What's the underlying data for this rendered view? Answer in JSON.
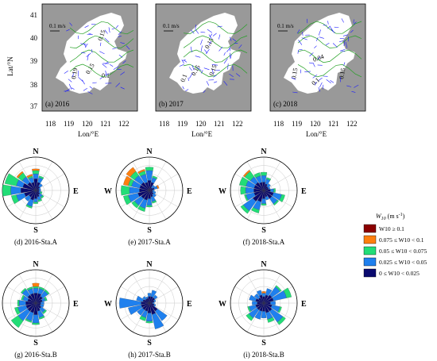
{
  "colors": {
    "land": "#999999",
    "sea": "#ffffff",
    "vector_blue": "#1a1aff",
    "contour_green": "#22a022",
    "bin_colors": [
      "#0a0a6e",
      "#1f80ee",
      "#22dd77",
      "#ff7f0e",
      "#8b0000"
    ]
  },
  "maps": [
    {
      "label": "(a) 2016",
      "scale_label": "0.1 m/s",
      "contour_labels": [
        "0.15",
        "0.19",
        "0.15",
        "0.1"
      ]
    },
    {
      "label": "(b) 2017",
      "scale_label": "0.1 m/s",
      "contour_labels": [
        "0.15",
        "0.15",
        "0.1",
        "0.15"
      ]
    },
    {
      "label": "(c) 2018",
      "scale_label": "0.1 m/s",
      "contour_labels": [
        "0.15",
        "0.04",
        "0.1",
        "0.15"
      ]
    }
  ],
  "map_axes": {
    "ylabel": "Lat/°N",
    "xlabel": "Lon/°E",
    "yticks": [
      "37",
      "38",
      "39",
      "40",
      "41"
    ],
    "xticks": [
      "118",
      "119",
      "120",
      "121",
      "122"
    ]
  },
  "legend": {
    "title": "W10 (m s-1)",
    "items": [
      "W10 ≥ 0.1",
      "0.075 ≤ W10 < 0.1",
      "0.05 ≤ W10 < 0.075",
      "0.025 ≤ W10 < 0.05",
      "0 ≤ W10 < 0.025"
    ]
  },
  "chart_data": [
    {
      "type": "rose",
      "label": "(d) 2016-Sta.A",
      "directions": [
        "N",
        "E",
        "S",
        "W"
      ],
      "r_max": 1,
      "sectors": [
        [
          0,
          0.35,
          0.15,
          0.1,
          0.05,
          0
        ],
        [
          22.5,
          0.25,
          0.15,
          0.05,
          0,
          0
        ],
        [
          45,
          0.15,
          0.1,
          0,
          0,
          0
        ],
        [
          67.5,
          0.1,
          0.05,
          0,
          0,
          0
        ],
        [
          90,
          0.1,
          0.05,
          0,
          0,
          0
        ],
        [
          112.5,
          0.1,
          0.05,
          0.05,
          0,
          0
        ],
        [
          135,
          0.15,
          0.1,
          0.05,
          0,
          0
        ],
        [
          157.5,
          0.2,
          0.1,
          0.05,
          0,
          0
        ],
        [
          180,
          0.25,
          0.1,
          0.05,
          0,
          0
        ],
        [
          202.5,
          0.3,
          0.2,
          0.05,
          0,
          0
        ],
        [
          225,
          0.25,
          0.15,
          0,
          0,
          0
        ],
        [
          247.5,
          0.35,
          0.25,
          0.15,
          0,
          0
        ],
        [
          270,
          0.45,
          0.3,
          0.25,
          0,
          0
        ],
        [
          292.5,
          0.4,
          0.2,
          0.35,
          0,
          0
        ],
        [
          315,
          0.3,
          0.2,
          0.15,
          0.05,
          0
        ],
        [
          337.5,
          0.25,
          0.15,
          0.05,
          0.05,
          0
        ]
      ]
    },
    {
      "type": "rose",
      "label": "(e) 2017-Sta.A",
      "directions": [
        "N",
        "E",
        "S",
        "W"
      ],
      "r_max": 1,
      "sectors": [
        [
          0,
          0.3,
          0.3,
          0.1,
          0,
          0
        ],
        [
          22.5,
          0.25,
          0.15,
          0.05,
          0,
          0
        ],
        [
          45,
          0.1,
          0.1,
          0,
          0,
          0
        ],
        [
          67.5,
          0.15,
          0.1,
          0,
          0.05,
          0
        ],
        [
          90,
          0.1,
          0.05,
          0,
          0,
          0
        ],
        [
          112.5,
          0.1,
          0.1,
          0,
          0,
          0
        ],
        [
          135,
          0.15,
          0.1,
          0,
          0,
          0
        ],
        [
          157.5,
          0.2,
          0.15,
          0.05,
          0,
          0
        ],
        [
          180,
          0.25,
          0.2,
          0.05,
          0,
          0
        ],
        [
          202.5,
          0.3,
          0.25,
          0.1,
          0,
          0
        ],
        [
          225,
          0.3,
          0.25,
          0.1,
          0,
          0
        ],
        [
          247.5,
          0.35,
          0.3,
          0.15,
          0,
          0
        ],
        [
          270,
          0.3,
          0.3,
          0.25,
          0,
          0
        ],
        [
          292.5,
          0.3,
          0.25,
          0.1,
          0.15,
          0
        ],
        [
          315,
          0.3,
          0.25,
          0.15,
          0.15,
          0
        ],
        [
          337.5,
          0.25,
          0.25,
          0.1,
          0.05,
          0
        ]
      ]
    },
    {
      "type": "rose",
      "label": "(f) 2018-Sta.A",
      "directions": [
        "N",
        "E",
        "S",
        "W"
      ],
      "r_max": 1,
      "sectors": [
        [
          0,
          0.25,
          0.2,
          0.1,
          0,
          0
        ],
        [
          22.5,
          0.2,
          0.15,
          0.05,
          0,
          0
        ],
        [
          45,
          0.15,
          0.1,
          0,
          0,
          0
        ],
        [
          67.5,
          0.15,
          0.05,
          0,
          0,
          0
        ],
        [
          90,
          0.2,
          0.1,
          0.05,
          0,
          0
        ],
        [
          112.5,
          0.3,
          0.25,
          0.1,
          0,
          0
        ],
        [
          135,
          0.3,
          0.2,
          0.05,
          0,
          0
        ],
        [
          157.5,
          0.2,
          0.1,
          0,
          0,
          0
        ],
        [
          180,
          0.25,
          0.15,
          0.05,
          0,
          0
        ],
        [
          202.5,
          0.35,
          0.25,
          0.1,
          0,
          0
        ],
        [
          225,
          0.4,
          0.35,
          0.1,
          0,
          0
        ],
        [
          247.5,
          0.3,
          0.25,
          0.05,
          0,
          0
        ],
        [
          270,
          0.3,
          0.25,
          0.15,
          0,
          0
        ],
        [
          292.5,
          0.3,
          0.25,
          0.2,
          0,
          0
        ],
        [
          315,
          0.3,
          0.2,
          0.2,
          0.05,
          0
        ],
        [
          337.5,
          0.25,
          0.2,
          0.1,
          0,
          0
        ]
      ]
    },
    {
      "type": "rose",
      "label": "(g) 2016-Sta.B",
      "directions": [
        "N",
        "E",
        "S",
        "W"
      ],
      "r_max": 1,
      "sectors": [
        [
          0,
          0.3,
          0.15,
          0.05,
          0.1,
          0
        ],
        [
          22.5,
          0.3,
          0.15,
          0.05,
          0,
          0
        ],
        [
          45,
          0.25,
          0.2,
          0.05,
          0,
          0
        ],
        [
          67.5,
          0.2,
          0.1,
          0.05,
          0,
          0
        ],
        [
          90,
          0.15,
          0.1,
          0,
          0,
          0
        ],
        [
          112.5,
          0.15,
          0.1,
          0,
          0,
          0
        ],
        [
          135,
          0.2,
          0.15,
          0.05,
          0,
          0
        ],
        [
          157.5,
          0.25,
          0.2,
          0.05,
          0,
          0
        ],
        [
          180,
          0.35,
          0.25,
          0.05,
          0,
          0
        ],
        [
          202.5,
          0.3,
          0.25,
          0.05,
          0,
          0
        ],
        [
          225,
          0.3,
          0.35,
          0.25,
          0,
          0
        ],
        [
          247.5,
          0.3,
          0.25,
          0.1,
          0,
          0
        ],
        [
          270,
          0.3,
          0.2,
          0.05,
          0,
          0
        ],
        [
          292.5,
          0.25,
          0.15,
          0.05,
          0,
          0
        ],
        [
          315,
          0.3,
          0.2,
          0.05,
          0,
          0
        ],
        [
          337.5,
          0.3,
          0.15,
          0.05,
          0,
          0
        ]
      ]
    },
    {
      "type": "rose",
      "label": "(h) 2017-Sta.B",
      "directions": [
        "N",
        "E",
        "S",
        "W"
      ],
      "r_max": 1,
      "sectors": [
        [
          0,
          0.2,
          0.1,
          0,
          0,
          0
        ],
        [
          22.5,
          0.2,
          0.2,
          0,
          0,
          0
        ],
        [
          45,
          0.2,
          0.1,
          0,
          0,
          0
        ],
        [
          67.5,
          0.15,
          0.05,
          0,
          0,
          0
        ],
        [
          90,
          0.1,
          0.05,
          0,
          0,
          0
        ],
        [
          112.5,
          0.15,
          0.05,
          0,
          0,
          0
        ],
        [
          135,
          0.3,
          0.35,
          0,
          0,
          0
        ],
        [
          157.5,
          0.35,
          0.45,
          0,
          0,
          0
        ],
        [
          180,
          0.3,
          0.25,
          0.05,
          0,
          0
        ],
        [
          202.5,
          0.25,
          0.2,
          0.1,
          0,
          0
        ],
        [
          225,
          0.25,
          0.2,
          0,
          0,
          0
        ],
        [
          247.5,
          0.25,
          0.4,
          0,
          0,
          0
        ],
        [
          270,
          0.25,
          0.65,
          0,
          0,
          0
        ],
        [
          292.5,
          0.2,
          0.2,
          0,
          0,
          0
        ],
        [
          315,
          0.15,
          0.1,
          0,
          0,
          0
        ],
        [
          337.5,
          0.15,
          0.05,
          0,
          0,
          0
        ]
      ]
    },
    {
      "type": "rose",
      "label": "(i) 2018-Sta.B",
      "directions": [
        "N",
        "E",
        "S",
        "W"
      ],
      "r_max": 1,
      "sectors": [
        [
          0,
          0.2,
          0.1,
          0,
          0.05,
          0
        ],
        [
          22.5,
          0.25,
          0.2,
          0,
          0,
          0
        ],
        [
          45,
          0.3,
          0.3,
          0.05,
          0,
          0
        ],
        [
          67.5,
          0.3,
          0.4,
          0.15,
          0,
          0
        ],
        [
          90,
          0.2,
          0.15,
          0,
          0,
          0
        ],
        [
          112.5,
          0.25,
          0.25,
          0.05,
          0,
          0
        ],
        [
          135,
          0.3,
          0.4,
          0.1,
          0,
          0
        ],
        [
          157.5,
          0.3,
          0.2,
          0.1,
          0,
          0
        ],
        [
          180,
          0.25,
          0.2,
          0,
          0,
          0
        ],
        [
          202.5,
          0.25,
          0.25,
          0,
          0,
          0
        ],
        [
          225,
          0.25,
          0.3,
          0.1,
          0,
          0
        ],
        [
          247.5,
          0.25,
          0.2,
          0.05,
          0,
          0
        ],
        [
          270,
          0.2,
          0.15,
          0,
          0,
          0
        ],
        [
          292.5,
          0.25,
          0.2,
          0,
          0,
          0
        ],
        [
          315,
          0.2,
          0.15,
          0,
          0,
          0
        ],
        [
          337.5,
          0.25,
          0.15,
          0,
          0,
          0
        ]
      ]
    }
  ]
}
